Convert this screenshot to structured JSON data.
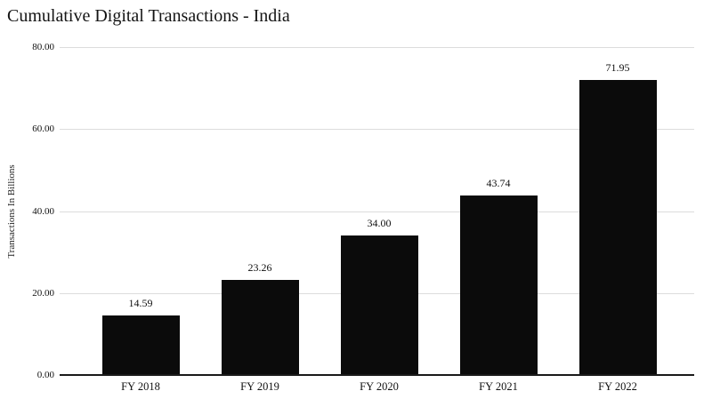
{
  "chart_data": {
    "type": "bar",
    "title": "Cumulative Digital Transactions - India",
    "xlabel": "",
    "ylabel": "Transactions In Billions",
    "categories": [
      "FY 2018",
      "FY 2019",
      "FY 2020",
      "FY 2021",
      "FY 2022"
    ],
    "values": [
      14.59,
      23.26,
      34.0,
      43.74,
      71.95
    ],
    "value_labels": [
      "14.59",
      "23.26",
      "34.00",
      "43.74",
      "71.95"
    ],
    "ylim": [
      0,
      80
    ],
    "yticks": [
      0,
      20,
      40,
      60,
      80
    ],
    "ytick_labels": [
      "0.00",
      "20.00",
      "40.00",
      "60.00",
      "80.00"
    ],
    "grid": true,
    "legend": "none",
    "colors": {
      "bar": "#0b0b0b",
      "gridline": "#dcdcdc",
      "axis_line": "#1a1a1a",
      "text": "#111111",
      "background": "#ffffff"
    }
  }
}
